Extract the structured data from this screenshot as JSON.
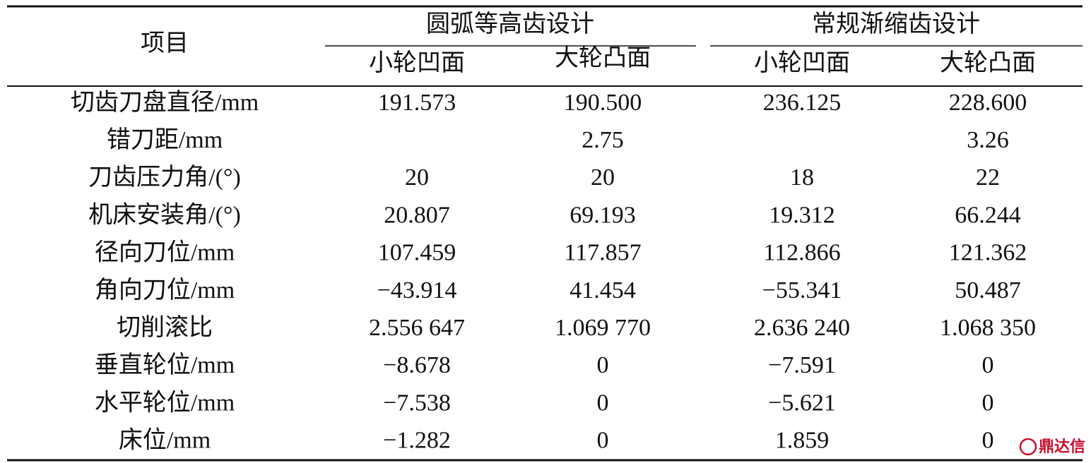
{
  "header": {
    "title": "项目",
    "groups": [
      {
        "title": "圆弧等高齿设计",
        "columns": [
          "小轮凹面",
          "大轮凸面"
        ]
      },
      {
        "title": "常规渐缩齿设计",
        "columns": [
          "小轮凹面",
          "大轮凸面"
        ]
      }
    ]
  },
  "rows": [
    {
      "label": "切齿刀盘直径/mm",
      "values": [
        "191.573",
        "190.500",
        "236.125",
        "228.600"
      ]
    },
    {
      "label": "错刀距/mm",
      "values": [
        null,
        "2.75",
        null,
        "3.26"
      ]
    },
    {
      "label": "刀齿压力角/(°)",
      "values": [
        "20",
        "20",
        "18",
        "22"
      ]
    },
    {
      "label": "机床安装角/(°)",
      "values": [
        "20.807",
        "69.193",
        "19.312",
        "66.244"
      ]
    },
    {
      "label": "径向刀位/mm",
      "values": [
        "107.459",
        "117.857",
        "112.866",
        "121.362"
      ]
    },
    {
      "label": "角向刀位/mm",
      "values": [
        "−43.914",
        "41.454",
        "−55.341",
        "50.487"
      ]
    },
    {
      "label": "切削滚比",
      "values": [
        "2.556 647",
        "1.069 770",
        "2.636 240",
        "1.068 350"
      ]
    },
    {
      "label": "垂直轮位/mm",
      "values": [
        "−8.678",
        "0",
        "−7.591",
        "0"
      ]
    },
    {
      "label": "水平轮位/mm",
      "values": [
        "−7.538",
        "0",
        "−5.621",
        "0"
      ]
    },
    {
      "label": "床位/mm",
      "values": [
        "−1.282",
        "0",
        "1.859",
        "0"
      ]
    }
  ],
  "watermark": {
    "text": "鼎达信"
  }
}
